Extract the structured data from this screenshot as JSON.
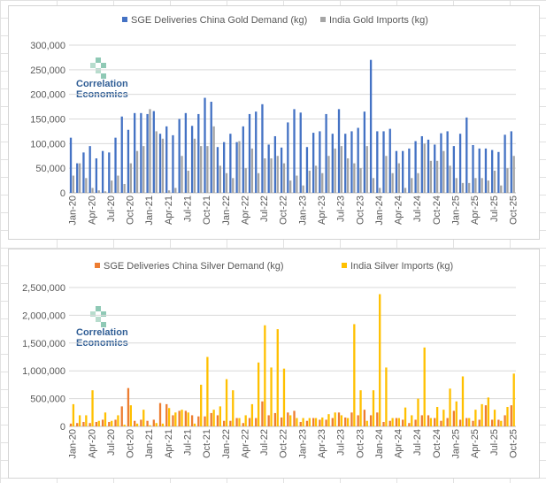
{
  "chart_data": [
    {
      "type": "bar",
      "id": "gold",
      "title": "",
      "xlabel": "",
      "ylabel": "",
      "ylim": [
        0,
        300000
      ],
      "yticks": [
        0,
        50000,
        100000,
        150000,
        200000,
        250000,
        300000
      ],
      "ytick_labels": [
        "0",
        "50,000",
        "100,000",
        "150,000",
        "200,000",
        "250,000",
        "300,000"
      ],
      "grid": true,
      "legend_position": "top",
      "categories": [
        "Jan-20",
        "Feb-20",
        "Mar-20",
        "Apr-20",
        "May-20",
        "Jun-20",
        "Jul-20",
        "Aug-20",
        "Sep-20",
        "Oct-20",
        "Nov-20",
        "Dec-20",
        "Jan-21",
        "Feb-21",
        "Mar-21",
        "Apr-21",
        "May-21",
        "Jun-21",
        "Jul-21",
        "Aug-21",
        "Sep-21",
        "Oct-21",
        "Nov-21",
        "Dec-21",
        "Jan-22",
        "Feb-22",
        "Mar-22",
        "Apr-22",
        "May-22",
        "Jun-22",
        "Jul-22",
        "Aug-22",
        "Sep-22",
        "Oct-22",
        "Nov-22",
        "Dec-22",
        "Jan-23",
        "Feb-23",
        "Mar-23",
        "Apr-23",
        "May-23",
        "Jun-23",
        "Jul-23",
        "Aug-23",
        "Sep-23",
        "Oct-23",
        "Nov-23",
        "Dec-23",
        "Jan-24",
        "Feb-24",
        "Mar-24",
        "Apr-24",
        "May-24",
        "Jun-24",
        "Jul-24",
        "Aug-24",
        "Sep-24",
        "Oct-24",
        "Nov-24",
        "Dec-24",
        "Jan-25",
        "Feb-25",
        "Mar-25",
        "Apr-25",
        "May-25",
        "Jun-25",
        "Jul-25",
        "Aug-25",
        "Sep-25",
        "Oct-25"
      ],
      "tick_labels": [
        "Jan-20",
        "Apr-20",
        "Jul-20",
        "Oct-20",
        "Jan-21",
        "Apr-21",
        "Jul-21",
        "Oct-21",
        "Jan-22",
        "Apr-22",
        "Jul-22",
        "Oct-22",
        "Jan-23",
        "Apr-23",
        "Jul-23",
        "Oct-23",
        "Jan-24",
        "Apr-24",
        "Jul-24",
        "Oct-24",
        "Jan-25",
        "Apr-25",
        "Jul-25",
        "Oct-25"
      ],
      "series": [
        {
          "name": "SGE Deliveries China Gold Demand (kg)",
          "color": "#4472c4",
          "values": [
            112000,
            60000,
            82000,
            95000,
            70000,
            85000,
            82000,
            112000,
            155000,
            128000,
            162000,
            162000,
            160000,
            166000,
            120000,
            135000,
            117000,
            150000,
            162000,
            136000,
            160000,
            193000,
            185000,
            93000,
            103000,
            120000,
            103000,
            135000,
            160000,
            165000,
            180000,
            98000,
            115000,
            92000,
            143000,
            170000,
            163000,
            93000,
            122000,
            125000,
            160000,
            120000,
            170000,
            120000,
            125000,
            132000,
            165000,
            270000,
            125000,
            125000,
            130000,
            85000,
            85000,
            90000,
            105000,
            115000,
            108000,
            98000,
            121000,
            125000,
            95000,
            120000,
            153000,
            97000,
            90000,
            90000,
            87000,
            83000,
            118000,
            125000
          ]
        },
        {
          "name": "India Gold Imports (kg)",
          "color": "#a5a5a5",
          "values": [
            35000,
            60000,
            30000,
            10000,
            5000,
            3000,
            25000,
            35000,
            18000,
            60000,
            85000,
            95000,
            170000,
            125000,
            110000,
            5000,
            10000,
            75000,
            45000,
            110000,
            95000,
            95000,
            135000,
            55000,
            40000,
            30000,
            105000,
            50000,
            90000,
            40000,
            70000,
            70000,
            75000,
            60000,
            25000,
            35000,
            15000,
            45000,
            55000,
            40000,
            75000,
            90000,
            95000,
            70000,
            60000,
            50000,
            95000,
            30000,
            10000,
            75000,
            40000,
            60000,
            10000,
            30000,
            40000,
            100000,
            65000,
            65000,
            85000,
            55000,
            30000,
            20000,
            20000,
            30000,
            30000,
            25000,
            45000,
            15000,
            50000,
            75000
          ]
        }
      ]
    },
    {
      "type": "bar",
      "id": "silver",
      "title": "",
      "xlabel": "",
      "ylabel": "",
      "ylim": [
        0,
        2500000
      ],
      "yticks": [
        0,
        500000,
        1000000,
        1500000,
        2000000,
        2500000
      ],
      "ytick_labels": [
        "0",
        "500,000",
        "1,000,000",
        "1,500,000",
        "2,000,000",
        "2,500,000"
      ],
      "grid": true,
      "legend_position": "top",
      "categories": [
        "Jan-20",
        "Feb-20",
        "Mar-20",
        "Apr-20",
        "May-20",
        "Jun-20",
        "Jul-20",
        "Aug-20",
        "Sep-20",
        "Oct-20",
        "Nov-20",
        "Dec-20",
        "Jan-21",
        "Feb-21",
        "Mar-21",
        "Apr-21",
        "May-21",
        "Jun-21",
        "Jul-21",
        "Aug-21",
        "Sep-21",
        "Oct-21",
        "Nov-21",
        "Dec-21",
        "Jan-22",
        "Feb-22",
        "Mar-22",
        "Apr-22",
        "May-22",
        "Jun-22",
        "Jul-22",
        "Aug-22",
        "Sep-22",
        "Oct-22",
        "Nov-22",
        "Dec-22",
        "Jan-23",
        "Feb-23",
        "Mar-23",
        "Apr-23",
        "May-23",
        "Jun-23",
        "Jul-23",
        "Aug-23",
        "Sep-23",
        "Oct-23",
        "Nov-23",
        "Dec-23",
        "Jan-24",
        "Feb-24",
        "Mar-24",
        "Apr-24",
        "May-24",
        "Jun-24",
        "Jul-24",
        "Aug-24",
        "Sep-24",
        "Oct-24",
        "Nov-24",
        "Dec-24",
        "Jan-25",
        "Feb-25",
        "Mar-25",
        "Apr-25",
        "May-25",
        "Jun-25",
        "Jul-25",
        "Aug-25",
        "Sep-25",
        "Oct-25"
      ],
      "tick_labels": [
        "Jan-20",
        "Apr-20",
        "Jul-20",
        "Oct-20",
        "Jan-21",
        "Apr-21",
        "Jul-21",
        "Oct-21",
        "Jan-22",
        "Apr-22",
        "Jul-22",
        "Oct-22",
        "Jan-23",
        "Apr-23",
        "Jul-23",
        "Oct-23",
        "Jan-24",
        "Apr-24",
        "Jul-24",
        "Oct-24",
        "Jan-25",
        "Apr-25",
        "Jul-25",
        "Oct-25"
      ],
      "series": [
        {
          "name": "SGE Deliveries China Silver Demand (kg)",
          "color": "#ed7d31",
          "values": [
            50000,
            60000,
            80000,
            60000,
            80000,
            120000,
            80000,
            120000,
            360000,
            690000,
            100000,
            120000,
            100000,
            120000,
            420000,
            400000,
            200000,
            280000,
            280000,
            200000,
            180000,
            180000,
            240000,
            200000,
            100000,
            100000,
            150000,
            60000,
            150000,
            150000,
            450000,
            200000,
            240000,
            160000,
            250000,
            280000,
            80000,
            100000,
            150000,
            120000,
            120000,
            150000,
            250000,
            160000,
            250000,
            200000,
            300000,
            200000,
            250000,
            80000,
            100000,
            150000,
            120000,
            60000,
            120000,
            200000,
            200000,
            150000,
            100000,
            150000,
            280000,
            120000,
            150000,
            100000,
            120000,
            380000,
            120000,
            120000,
            200000,
            380000
          ]
        },
        {
          "name": "India Silver Imports (kg)",
          "color": "#ffc000",
          "values": [
            400000,
            200000,
            200000,
            650000,
            100000,
            250000,
            100000,
            200000,
            30000,
            380000,
            50000,
            300000,
            20000,
            60000,
            50000,
            330000,
            250000,
            300000,
            250000,
            50000,
            750000,
            1250000,
            300000,
            360000,
            850000,
            650000,
            150000,
            200000,
            400000,
            1150000,
            1820000,
            1060000,
            1750000,
            1040000,
            200000,
            150000,
            150000,
            150000,
            150000,
            160000,
            220000,
            250000,
            200000,
            150000,
            1840000,
            650000,
            100000,
            650000,
            2380000,
            1060000,
            150000,
            150000,
            340000,
            200000,
            500000,
            1420000,
            150000,
            350000,
            300000,
            680000,
            450000,
            900000,
            150000,
            300000,
            400000,
            520000,
            300000,
            100000,
            350000,
            950000
          ]
        }
      ]
    }
  ],
  "logo": {
    "line1": "Correlation",
    "line2": "Economics",
    "mark_color": "#8fc9b5",
    "text_color": "#2f5d95"
  }
}
